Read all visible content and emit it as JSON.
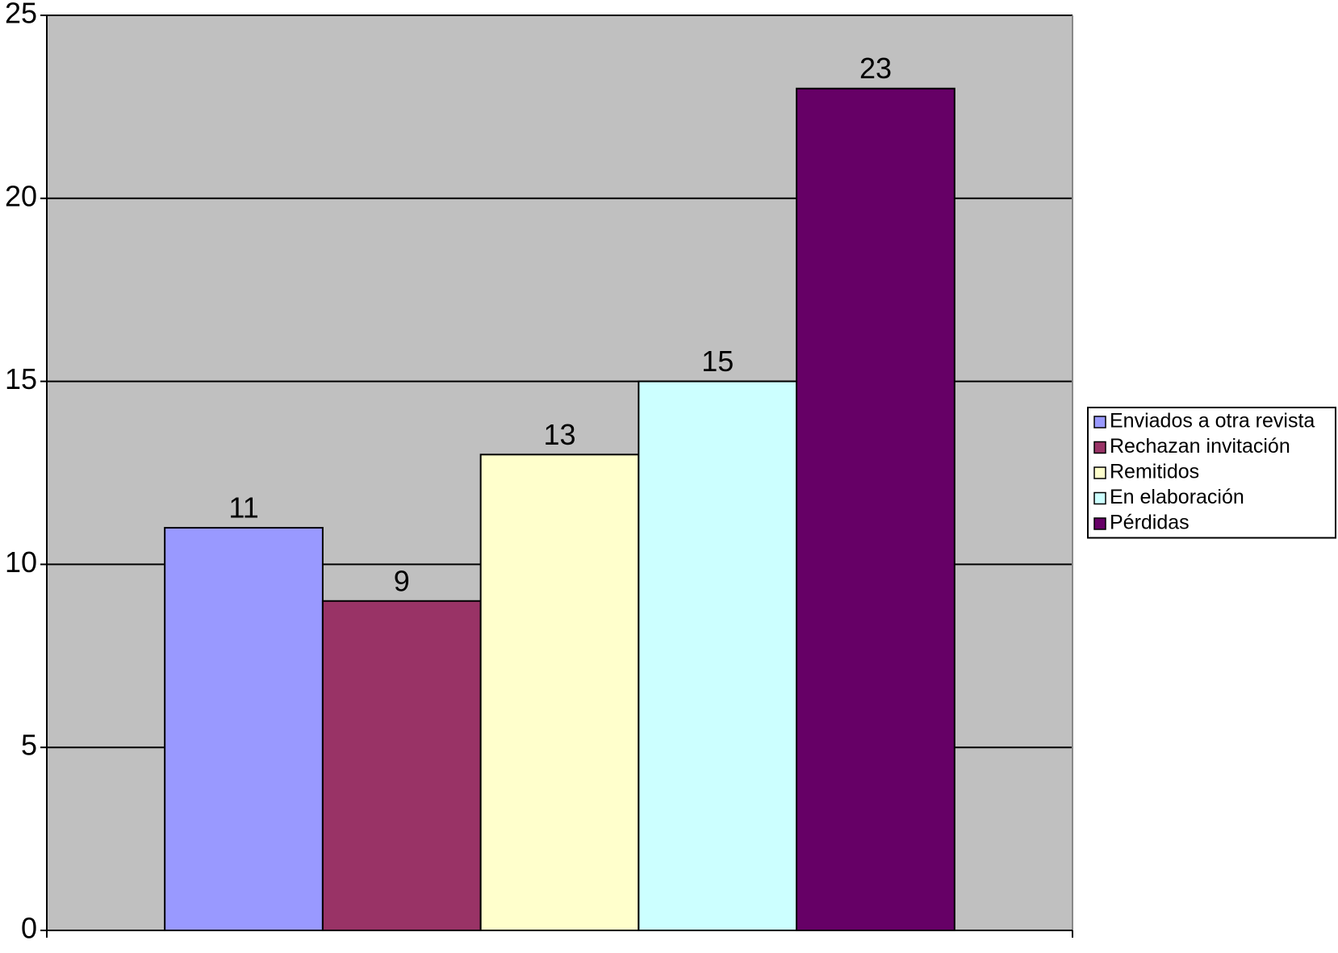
{
  "chart_data": {
    "type": "bar",
    "categories": [
      null
    ],
    "series": [
      {
        "name": "Enviados a otra revista",
        "color": "#9999ff",
        "values": [
          11
        ]
      },
      {
        "name": "Rechazan invitación",
        "color": "#993366",
        "values": [
          9
        ]
      },
      {
        "name": "Remitidos",
        "color": "#ffffcc",
        "values": [
          13
        ]
      },
      {
        "name": "En elaboración",
        "color": "#ccffff",
        "values": [
          15
        ]
      },
      {
        "name": "Pérdidas",
        "color": "#660066",
        "values": [
          23
        ]
      }
    ],
    "ylim": [
      0,
      25
    ],
    "yticks": [
      0,
      5,
      10,
      15,
      20,
      25
    ],
    "grid": true,
    "legend": "right",
    "plot_background": "#c0c0c0"
  }
}
